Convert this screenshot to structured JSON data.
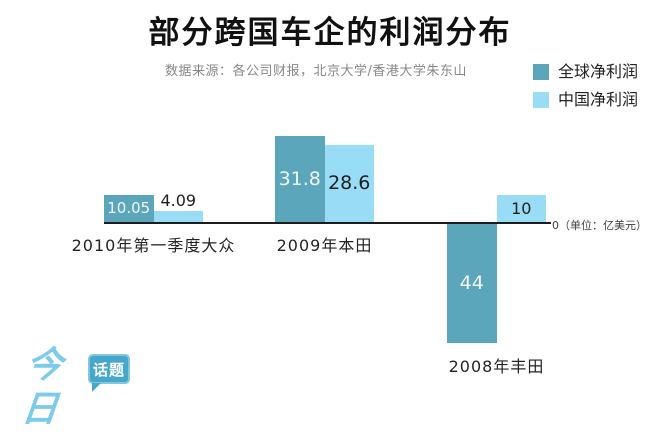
{
  "title": "部分跨国车企的利润分布",
  "subtitle": "数据来源：各公司财报，北京大学/香港大学朱东山",
  "legend": [
    {
      "label": "全球净利润",
      "color": "#5ba6bb"
    },
    {
      "label": "中国净利润",
      "color": "#98dcf6"
    }
  ],
  "axis_note": "0（单位：亿美元）",
  "colors": {
    "global_bar": "#5ba6bb",
    "china_bar": "#98dcf6",
    "baseline": "#1c1c1c",
    "logo_script": "#7ccbeb",
    "logo_bubble": "#46a7cc"
  },
  "chart_data": {
    "type": "bar",
    "title": "部分跨国车企的利润分布",
    "source_note": "数据来源：各公司财报，北京大学/香港大学朱东山",
    "categories": [
      "2010年第一季度大众",
      "2009年本田",
      "2008年丰田"
    ],
    "series": [
      {
        "name": "全球净利润",
        "values": [
          10.05,
          31.8,
          -44
        ],
        "display": [
          "10.05",
          "31.8",
          "44"
        ],
        "color": "#5ba6bb"
      },
      {
        "name": "中国净利润",
        "values": [
          4.09,
          28.6,
          10
        ],
        "display": [
          "4.09",
          "28.6",
          "10"
        ],
        "color": "#98dcf6"
      }
    ],
    "unit": "亿美元",
    "baseline_value_label": "0（单位：亿美元）",
    "baseline": 0,
    "grid": false,
    "legend_position": "top-right",
    "value_labels_shown": true
  },
  "logo": {
    "script_text": "今日",
    "bubble_text": "话题"
  }
}
